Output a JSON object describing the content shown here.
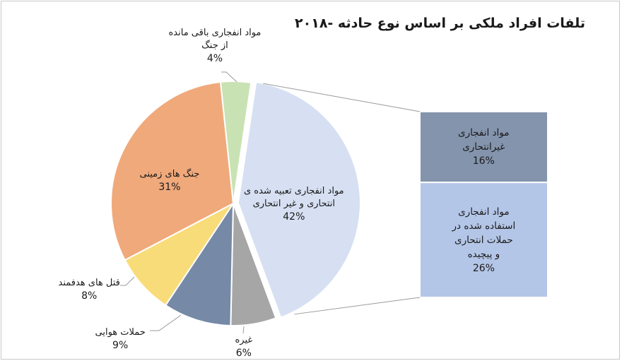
{
  "chart_data": {
    "type": "pie",
    "title": "تلفات افراد ملکی بر اساس نوع حادثه -۲۰۱۸",
    "slices": [
      {
        "key": "uxo",
        "label": "مواد انفجاری باقی مانده از جنگ",
        "label_lines": [
          "مواد انفجاری باقی مانده",
          "از جنگ"
        ],
        "value": 4,
        "value_label": "4%",
        "color": "#c9e2b3"
      },
      {
        "key": "ied",
        "label": "مواد انفجاری تعبیه شده ی انتحاری و غیر انتحاری",
        "label_lines": [
          "مواد انفجاری تعبیه شده ی",
          "انتحاری و غیر انتحاری"
        ],
        "value": 42,
        "value_label": "42%",
        "color": "#d6e0f2"
      },
      {
        "key": "other",
        "label": "غیره",
        "label_lines": [
          "غیره"
        ],
        "value": 6,
        "value_label": "6%",
        "color": "#a6a6a6"
      },
      {
        "key": "air",
        "label": "حملات هوایی",
        "label_lines": [
          "حملات هوایی"
        ],
        "value": 9,
        "value_label": "9%",
        "color": "#7689a6"
      },
      {
        "key": "targeted",
        "label": "قتل های هدفمند",
        "label_lines": [
          "قتل های هدفمند"
        ],
        "value": 8,
        "value_label": "8%",
        "color": "#f9dc7a"
      },
      {
        "key": "ground",
        "label": "جنگ های زمینی",
        "label_lines": [
          "جنگ های زمینی"
        ],
        "value": 31,
        "value_label": "31%",
        "color": "#f0a97b"
      }
    ],
    "breakdown": {
      "parent": "ied",
      "items": [
        {
          "key": "non_suicide",
          "label_lines": [
            "مواد انفجاری",
            "غیرانتحاری"
          ],
          "value": 16,
          "value_label": "16%",
          "color": "#8494ad"
        },
        {
          "key": "complex",
          "label_lines": [
            "مواد انفجاری",
            "استفاده شده در",
            "حملات انتحاری",
            "و پیچیده"
          ],
          "value": 26,
          "value_label": "26%",
          "color": "#b4c6e7"
        }
      ]
    }
  }
}
